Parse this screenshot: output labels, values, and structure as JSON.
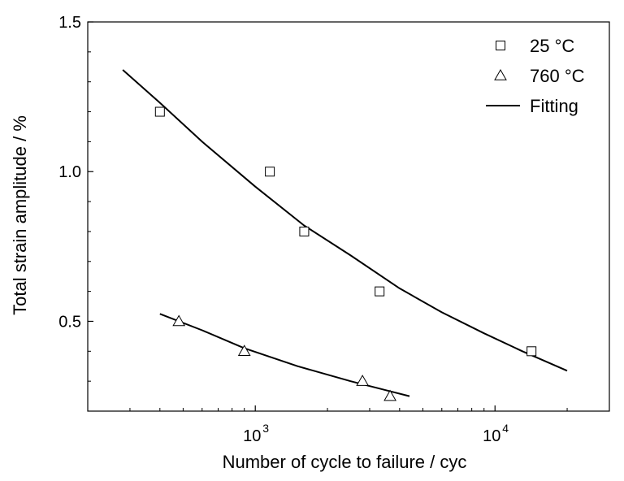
{
  "chart_data": {
    "type": "scatter",
    "title": "",
    "xlabel": "Number of cycle to failure / cyc",
    "ylabel": "Total strain amplitude / %",
    "xscale": "log",
    "xlim": [
      200,
      30000
    ],
    "ylim": [
      0.2,
      1.5
    ],
    "xticks": [
      {
        "value": 1000,
        "base": "10",
        "exp": "3"
      },
      {
        "value": 10000,
        "base": "10",
        "exp": "4"
      }
    ],
    "yticks": [
      {
        "value": 0.5,
        "label": "0.5"
      },
      {
        "value": 1.0,
        "label": "1.0"
      },
      {
        "value": 1.5,
        "label": "1.5"
      }
    ],
    "grid": false,
    "legend_position": "top-right",
    "series": [
      {
        "name": "25 °C",
        "marker": "square",
        "points": [
          {
            "x": 400,
            "y": 1.2
          },
          {
            "x": 1150,
            "y": 1.0
          },
          {
            "x": 1600,
            "y": 0.8
          },
          {
            "x": 3300,
            "y": 0.6
          },
          {
            "x": 14200,
            "y": 0.4
          }
        ]
      },
      {
        "name": "760 °C",
        "marker": "triangle",
        "points": [
          {
            "x": 480,
            "y": 0.5
          },
          {
            "x": 900,
            "y": 0.4
          },
          {
            "x": 2800,
            "y": 0.3
          },
          {
            "x": 3650,
            "y": 0.25
          }
        ]
      }
    ],
    "fits": [
      {
        "name": "Fitting",
        "points": [
          {
            "x": 280,
            "y": 1.34
          },
          {
            "x": 400,
            "y": 1.23
          },
          {
            "x": 600,
            "y": 1.1
          },
          {
            "x": 1000,
            "y": 0.95
          },
          {
            "x": 1600,
            "y": 0.82
          },
          {
            "x": 2500,
            "y": 0.72
          },
          {
            "x": 4000,
            "y": 0.61
          },
          {
            "x": 6000,
            "y": 0.53
          },
          {
            "x": 9000,
            "y": 0.46
          },
          {
            "x": 13000,
            "y": 0.4
          },
          {
            "x": 20000,
            "y": 0.335
          }
        ]
      },
      {
        "name": "Fitting",
        "points": [
          {
            "x": 400,
            "y": 0.525
          },
          {
            "x": 600,
            "y": 0.47
          },
          {
            "x": 900,
            "y": 0.41
          },
          {
            "x": 1500,
            "y": 0.35
          },
          {
            "x": 2500,
            "y": 0.3
          },
          {
            "x": 3500,
            "y": 0.27
          },
          {
            "x": 4400,
            "y": 0.25
          }
        ]
      }
    ],
    "legend": [
      {
        "label": "25 °C",
        "marker": "square"
      },
      {
        "label": "760 °C",
        "marker": "triangle"
      },
      {
        "label": "Fitting",
        "marker": "line"
      }
    ]
  }
}
